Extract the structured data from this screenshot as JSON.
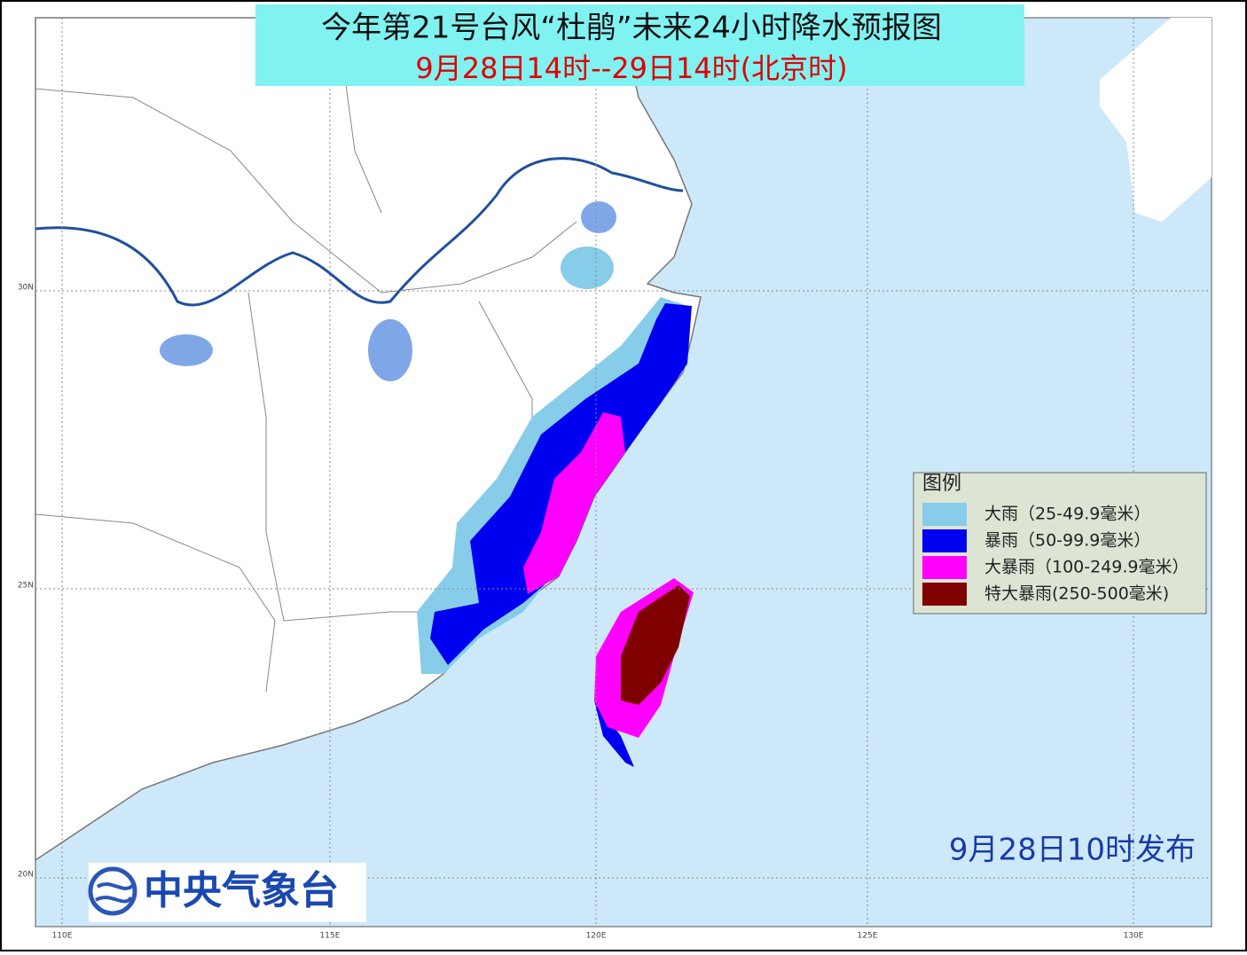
{
  "header": {
    "title": "今年第21号台风“杜鹃”未来24小时降水预报图",
    "subtitle": "9月28日14时--29日14时(北京时)"
  },
  "legend": {
    "title": "图例",
    "items": [
      {
        "label": "大雨（25-49.9毫米）",
        "color": "#87cdea"
      },
      {
        "label": "暴雨（50-99.9毫米）",
        "color": "#0000f0"
      },
      {
        "label": "大暴雨（100-249.9毫米）",
        "color": "#ff00ff"
      },
      {
        "label": "特大暴雨(250-500毫米)",
        "color": "#800000"
      }
    ]
  },
  "issued": "9月28日10时发布",
  "agency": "中央气象台",
  "grid": {
    "lat_labels": [
      "30N",
      "25N",
      "20N"
    ],
    "lon_labels": [
      "110E",
      "115E",
      "120E",
      "125E",
      "130E"
    ]
  }
}
